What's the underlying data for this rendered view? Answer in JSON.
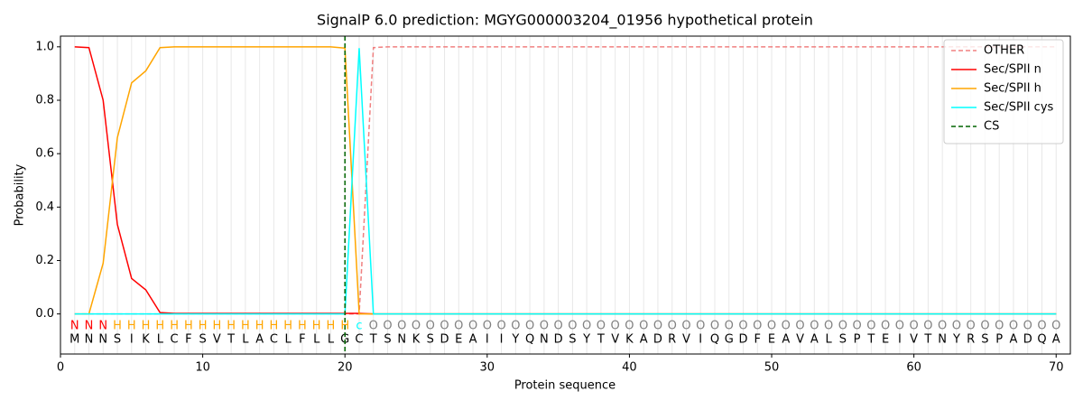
{
  "chart_data": {
    "type": "line",
    "title": "SignalP 6.0 prediction: MGYG000003204_01956 hypothetical protein",
    "x_label": "Protein sequence",
    "y_label": "Probability",
    "x": [
      1,
      2,
      3,
      4,
      5,
      6,
      7,
      8,
      9,
      10,
      11,
      12,
      13,
      14,
      15,
      16,
      17,
      18,
      19,
      20,
      21,
      22,
      23,
      24,
      25,
      26,
      27,
      28,
      29,
      30,
      31,
      32,
      33,
      34,
      35,
      36,
      37,
      38,
      39,
      40,
      41,
      42,
      43,
      44,
      45,
      46,
      47,
      48,
      49,
      50,
      51,
      52,
      53,
      54,
      55,
      56,
      57,
      58,
      59,
      60,
      61,
      62,
      63,
      64,
      65,
      66,
      67,
      68,
      69,
      70
    ],
    "sequence": [
      "M",
      "N",
      "N",
      "S",
      "I",
      "K",
      "L",
      "C",
      "F",
      "S",
      "V",
      "T",
      "L",
      "A",
      "C",
      "L",
      "F",
      "L",
      "L",
      "G",
      "C",
      "T",
      "S",
      "N",
      "K",
      "S",
      "D",
      "E",
      "A",
      "I",
      "I",
      "Y",
      "Q",
      "N",
      "D",
      "S",
      "Y",
      "T",
      "V",
      "K",
      "A",
      "D",
      "R",
      "V",
      "I",
      "Q",
      "G",
      "D",
      "F",
      "E",
      "A",
      "V",
      "A",
      "L",
      "S",
      "P",
      "T",
      "E",
      "I",
      "V",
      "T",
      "N",
      "Y",
      "R",
      "S",
      "P",
      "A",
      "D",
      "Q",
      "A"
    ],
    "labels": [
      "N",
      "N",
      "N",
      "H",
      "H",
      "H",
      "H",
      "H",
      "H",
      "H",
      "H",
      "H",
      "H",
      "H",
      "H",
      "H",
      "H",
      "H",
      "H",
      "H",
      "c",
      "O",
      "O",
      "O",
      "O",
      "O",
      "O",
      "O",
      "O",
      "O",
      "O",
      "O",
      "O",
      "O",
      "O",
      "O",
      "O",
      "O",
      "O",
      "O",
      "O",
      "O",
      "O",
      "O",
      "O",
      "O",
      "O",
      "O",
      "O",
      "O",
      "O",
      "O",
      "O",
      "O",
      "O",
      "O",
      "O",
      "O",
      "O",
      "O",
      "O",
      "O",
      "O",
      "O",
      "O",
      "O",
      "O",
      "O",
      "O",
      "O"
    ],
    "label_colors": {
      "N": "#ff0000",
      "H": "#ffa500",
      "c": "#00ffff",
      "O": "#808080"
    },
    "series": [
      {
        "name": "OTHER",
        "color": "#f08080",
        "dashed": true,
        "values": [
          0,
          0,
          0,
          0,
          0,
          0,
          0,
          0,
          0,
          0,
          0,
          0,
          0,
          0,
          0,
          0,
          0,
          0,
          0,
          0,
          0,
          0.997,
          1,
          1,
          1,
          1,
          1,
          1,
          1,
          1,
          1,
          1,
          1,
          1,
          1,
          1,
          1,
          1,
          1,
          1,
          1,
          1,
          1,
          1,
          1,
          1,
          1,
          1,
          1,
          1,
          1,
          1,
          1,
          1,
          1,
          1,
          1,
          1,
          1,
          1,
          1,
          1,
          1,
          1,
          1,
          1,
          1,
          1,
          1,
          1
        ]
      },
      {
        "name": "Sec/SPII n",
        "color": "#ff0000",
        "dashed": false,
        "values": [
          1,
          0.997,
          0.8,
          0.335,
          0.133,
          0.09,
          0.005,
          0.002,
          0.002,
          0.002,
          0.002,
          0.002,
          0.002,
          0.002,
          0.002,
          0.002,
          0.002,
          0.002,
          0.002,
          0.002,
          0.002,
          0,
          0,
          0,
          0,
          0,
          0,
          0,
          0,
          0,
          0,
          0,
          0,
          0,
          0,
          0,
          0,
          0,
          0,
          0,
          0,
          0,
          0,
          0,
          0,
          0,
          0,
          0,
          0,
          0,
          0,
          0,
          0,
          0,
          0,
          0,
          0,
          0,
          0,
          0,
          0,
          0,
          0,
          0,
          0,
          0,
          0,
          0,
          0,
          0
        ]
      },
      {
        "name": "Sec/SPII h",
        "color": "#ffa500",
        "dashed": false,
        "values": [
          0,
          0,
          0.19,
          0.66,
          0.865,
          0.91,
          0.997,
          1,
          1,
          1,
          1,
          1,
          1,
          1,
          1,
          1,
          1,
          1,
          1,
          0.995,
          0,
          0,
          0,
          0,
          0,
          0,
          0,
          0,
          0,
          0,
          0,
          0,
          0,
          0,
          0,
          0,
          0,
          0,
          0,
          0,
          0,
          0,
          0,
          0,
          0,
          0,
          0,
          0,
          0,
          0,
          0,
          0,
          0,
          0,
          0,
          0,
          0,
          0,
          0,
          0,
          0,
          0,
          0,
          0,
          0,
          0,
          0,
          0,
          0,
          0
        ]
      },
      {
        "name": "Sec/SPII cys",
        "color": "#00ffff",
        "dashed": false,
        "values": [
          0,
          0,
          0,
          0,
          0,
          0,
          0,
          0,
          0,
          0,
          0,
          0,
          0,
          0,
          0,
          0,
          0,
          0,
          0,
          0,
          0.995,
          0,
          0,
          0,
          0,
          0,
          0,
          0,
          0,
          0,
          0,
          0,
          0,
          0,
          0,
          0,
          0,
          0,
          0,
          0,
          0,
          0,
          0,
          0,
          0,
          0,
          0,
          0,
          0,
          0,
          0,
          0,
          0,
          0,
          0,
          0,
          0,
          0,
          0,
          0,
          0,
          0,
          0,
          0,
          0,
          0,
          0,
          0,
          0,
          0
        ]
      }
    ],
    "cleavage_site": {
      "name": "CS",
      "x": 20,
      "color": "#006400"
    },
    "xlim": [
      0,
      71
    ],
    "ylim": [
      -0.15,
      1.04
    ],
    "xticks": [
      0,
      10,
      20,
      30,
      40,
      50,
      60,
      70
    ],
    "yticks": [
      {
        "value": 0,
        "label": "0.0"
      },
      0.2,
      0.4,
      0.6,
      0.8,
      {
        "value": 1,
        "label": "1.0"
      }
    ],
    "grid": true,
    "legend": "upper right"
  }
}
